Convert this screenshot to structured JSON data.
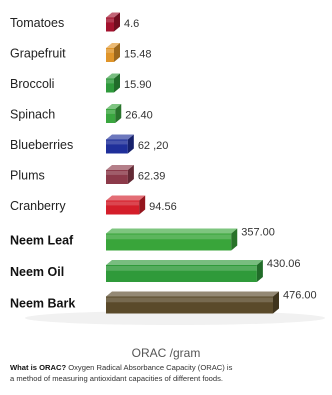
{
  "chart_data": {
    "type": "bar",
    "orientation": "horizontal",
    "style": "3d",
    "xlabel": "ORAC /gram",
    "categories": [
      "Tomatoes",
      "Grapefruit",
      "Broccoli",
      "Spinach",
      "Blueberries",
      "Plums",
      "Cranberry",
      "Neem Leaf",
      "Neem Oil",
      "Neem Bark"
    ],
    "bold_categories": [
      "Neem Leaf",
      "Neem Oil",
      "Neem Bark"
    ],
    "values": [
      4.6,
      15.48,
      15.9,
      26.4,
      62.2,
      62.39,
      94.56,
      357.0,
      430.06,
      476.0
    ],
    "value_labels": [
      "4.6",
      "15.48",
      "15.90",
      "26.40",
      "62 ,20",
      "62.39",
      "94.56",
      "357.00",
      "430.06",
      "476.00"
    ],
    "colors": [
      "#a3122e",
      "#e0952a",
      "#2f9a3c",
      "#3aa63f",
      "#1f2f9a",
      "#8c3a4a",
      "#d41e2a",
      "#39a53a",
      "#2f9a3a",
      "#5a4a2a"
    ]
  },
  "description": {
    "question": "What is ORAC?",
    "line1": " Oxygen Radical Absorbance Capacity (ORAC) is",
    "line2": "a method of measuring antioxidant capacities of different foods."
  }
}
